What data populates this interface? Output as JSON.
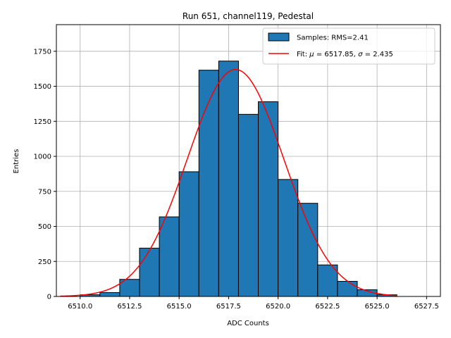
{
  "chart_data": {
    "type": "bar",
    "title": "Run 651, channel119, Pedestal",
    "xlabel": "ADC Counts",
    "ylabel": "Entries",
    "xlim": [
      6508.8,
      6528.2
    ],
    "ylim": [
      0,
      1940
    ],
    "grid": true,
    "xticks": [
      6510.0,
      6512.5,
      6515.0,
      6517.5,
      6520.0,
      6522.5,
      6525.0,
      6527.5
    ],
    "xtick_labels": [
      "6510.0",
      "6512.5",
      "6515.0",
      "6517.5",
      "6520.0",
      "6522.5",
      "6525.0",
      "6527.5"
    ],
    "yticks": [
      0,
      250,
      500,
      750,
      1000,
      1250,
      1500,
      1750
    ],
    "ytick_labels": [
      "0",
      "250",
      "500",
      "750",
      "1000",
      "1250",
      "1500",
      "1750"
    ],
    "histogram": {
      "name": "Samples: RMS=2.41",
      "bin_edges": [
        6510,
        6511,
        6512,
        6513,
        6514,
        6515,
        6516,
        6517,
        6518,
        6519,
        6520,
        6521,
        6522,
        6523,
        6524,
        6525,
        6526
      ],
      "counts": [
        12,
        28,
        122,
        345,
        568,
        890,
        1615,
        1680,
        1300,
        1390,
        835,
        665,
        225,
        108,
        48,
        12
      ],
      "color": "#1f77b4",
      "edgecolor": "#000000"
    },
    "fit": {
      "name": "Fit: μ = 6517.85, σ = 2.435",
      "label_prefix": "Fit: ",
      "mu_symbol": "μ",
      "mu_text": " = 6517.85, ",
      "sigma_symbol": "σ",
      "sigma_text": " = 2.435",
      "type": "gaussian",
      "mu": 6517.85,
      "sigma": 2.435,
      "amplitude": 1620,
      "x_range": [
        6509,
        6526
      ],
      "color": "#ff0000"
    },
    "legend_position": "top-right"
  }
}
